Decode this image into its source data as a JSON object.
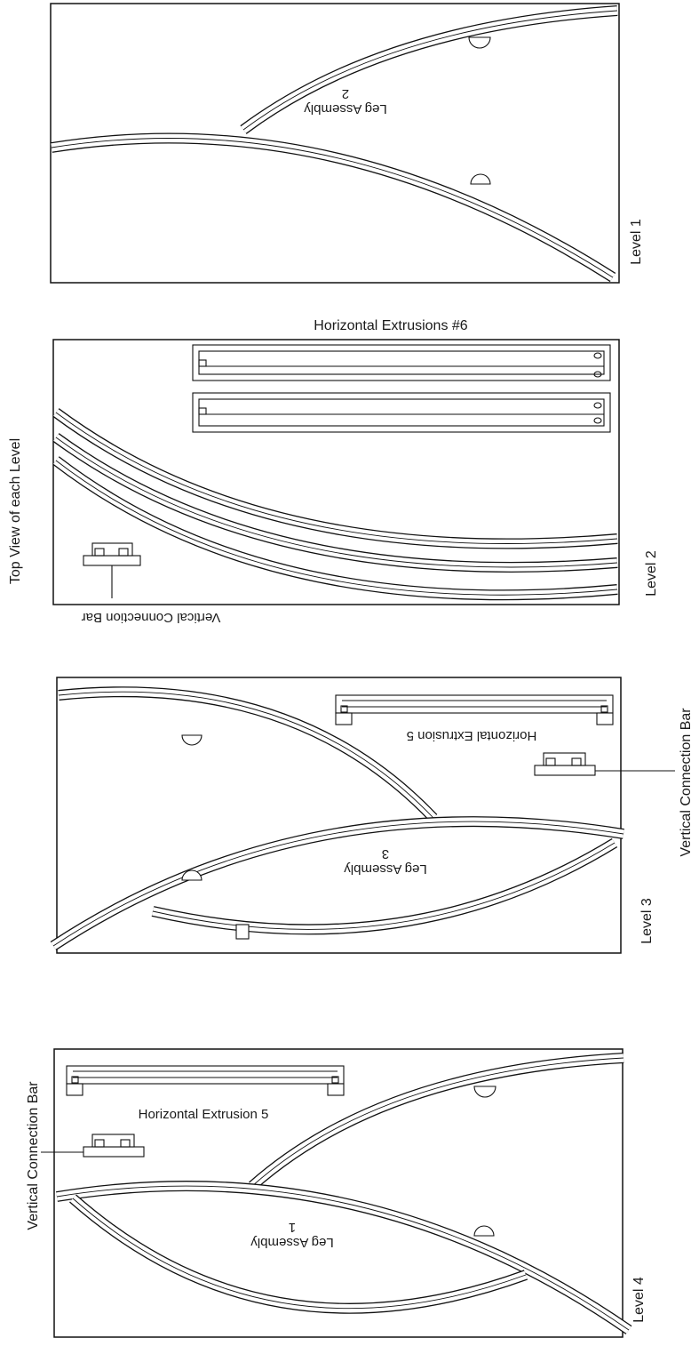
{
  "levels": {
    "level1": "Level 1",
    "level2": "Level 2",
    "level3": "Level 3",
    "level4": "Level 4"
  },
  "labels": {
    "top_view": "Top View of each Level",
    "horizontal_extrusions_6": "Horizontal Extrusions #6",
    "vertical_connection_bar": "Vertical Connection Bar",
    "horizontal_extrusion_5": "Horizontal Extrusion 5"
  },
  "legs": {
    "leg1_title": "Leg Assembly",
    "leg1_num": "1",
    "leg2_title": "Leg Assembly",
    "leg2_num": "2",
    "leg3_title": "Leg Assembly",
    "leg3_num": "3"
  }
}
